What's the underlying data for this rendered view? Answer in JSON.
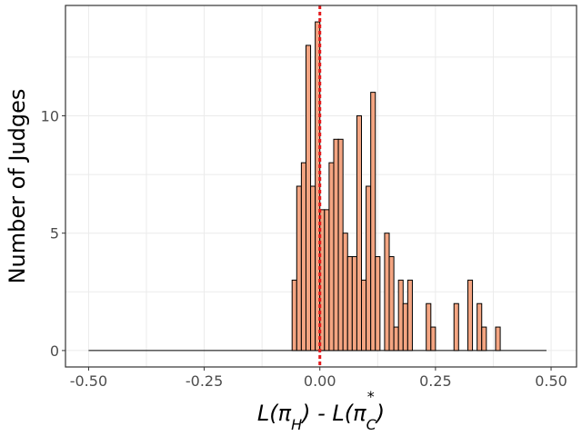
{
  "chart_data": {
    "type": "bar",
    "subtype": "histogram",
    "xlabel": "L(π_H) - L(π_C*)",
    "ylabel": "Number of Judges",
    "xlim": [
      -0.55,
      0.555
    ],
    "ylim": [
      -0.7,
      14.7
    ],
    "xticks": [
      -0.5,
      -0.25,
      0.0,
      0.25,
      0.5
    ],
    "xtick_labels": [
      "-0.50",
      "-0.25",
      "0.00",
      "0.25",
      "0.50"
    ],
    "yticks": [
      0,
      5,
      10
    ],
    "ytick_labels": [
      "0",
      "5",
      "10"
    ],
    "x_range": [
      -0.5,
      0.49
    ],
    "bin_width": 0.01,
    "reference_line_x": 0.0,
    "bins": [
      {
        "x": -0.055,
        "count": 3
      },
      {
        "x": -0.045,
        "count": 7
      },
      {
        "x": -0.035,
        "count": 8
      },
      {
        "x": -0.025,
        "count": 13
      },
      {
        "x": -0.015,
        "count": 7
      },
      {
        "x": -0.005,
        "count": 14
      },
      {
        "x": 0.005,
        "count": 6
      },
      {
        "x": 0.015,
        "count": 6
      },
      {
        "x": 0.025,
        "count": 8
      },
      {
        "x": 0.035,
        "count": 9
      },
      {
        "x": 0.045,
        "count": 9
      },
      {
        "x": 0.055,
        "count": 5
      },
      {
        "x": 0.065,
        "count": 4
      },
      {
        "x": 0.075,
        "count": 4
      },
      {
        "x": 0.085,
        "count": 10
      },
      {
        "x": 0.095,
        "count": 3
      },
      {
        "x": 0.105,
        "count": 7
      },
      {
        "x": 0.115,
        "count": 11
      },
      {
        "x": 0.125,
        "count": 4
      },
      {
        "x": 0.145,
        "count": 5
      },
      {
        "x": 0.155,
        "count": 4
      },
      {
        "x": 0.165,
        "count": 1
      },
      {
        "x": 0.175,
        "count": 3
      },
      {
        "x": 0.185,
        "count": 2
      },
      {
        "x": 0.195,
        "count": 3
      },
      {
        "x": 0.235,
        "count": 2
      },
      {
        "x": 0.245,
        "count": 1
      },
      {
        "x": 0.295,
        "count": 2
      },
      {
        "x": 0.325,
        "count": 3
      },
      {
        "x": 0.345,
        "count": 2
      },
      {
        "x": 0.355,
        "count": 1
      },
      {
        "x": 0.385,
        "count": 1
      }
    ]
  }
}
